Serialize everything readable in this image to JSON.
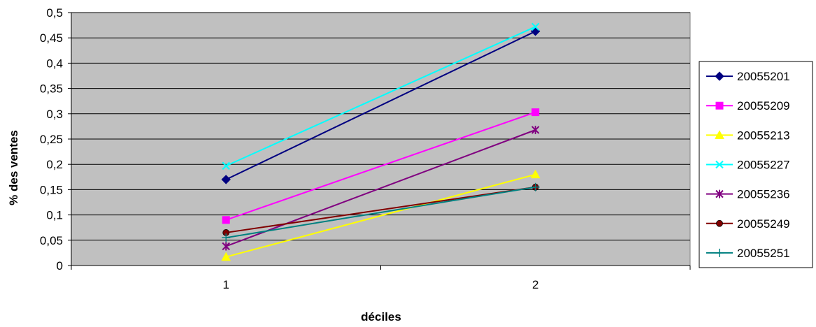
{
  "chart_data": {
    "type": "line",
    "title": "",
    "xlabel": "déciles",
    "ylabel": "% des ventes",
    "categories": [
      "1",
      "2"
    ],
    "ylim": [
      0,
      0.5
    ],
    "yticks": [
      "0",
      "0,05",
      "0,1",
      "0,15",
      "0,2",
      "0,25",
      "0,3",
      "0,35",
      "0,4",
      "0,45",
      "0,5"
    ],
    "grid": true,
    "legend_position": "right",
    "plot_background": "#c0c0c0",
    "series": [
      {
        "name": "20055201",
        "values": [
          0.17,
          0.463
        ],
        "color": "#000080",
        "marker": "diamond"
      },
      {
        "name": "20055209",
        "values": [
          0.09,
          0.303
        ],
        "color": "#ff00ff",
        "marker": "square"
      },
      {
        "name": "20055213",
        "values": [
          0.017,
          0.18
        ],
        "color": "#ffff00",
        "marker": "triangle"
      },
      {
        "name": "20055227",
        "values": [
          0.197,
          0.472
        ],
        "color": "#00ffff",
        "marker": "x"
      },
      {
        "name": "20055236",
        "values": [
          0.038,
          0.268
        ],
        "color": "#800080",
        "marker": "star"
      },
      {
        "name": "20055249",
        "values": [
          0.065,
          0.155
        ],
        "color": "#800000",
        "marker": "circle"
      },
      {
        "name": "20055251",
        "values": [
          0.055,
          0.155
        ],
        "color": "#008080",
        "marker": "plus"
      }
    ]
  }
}
